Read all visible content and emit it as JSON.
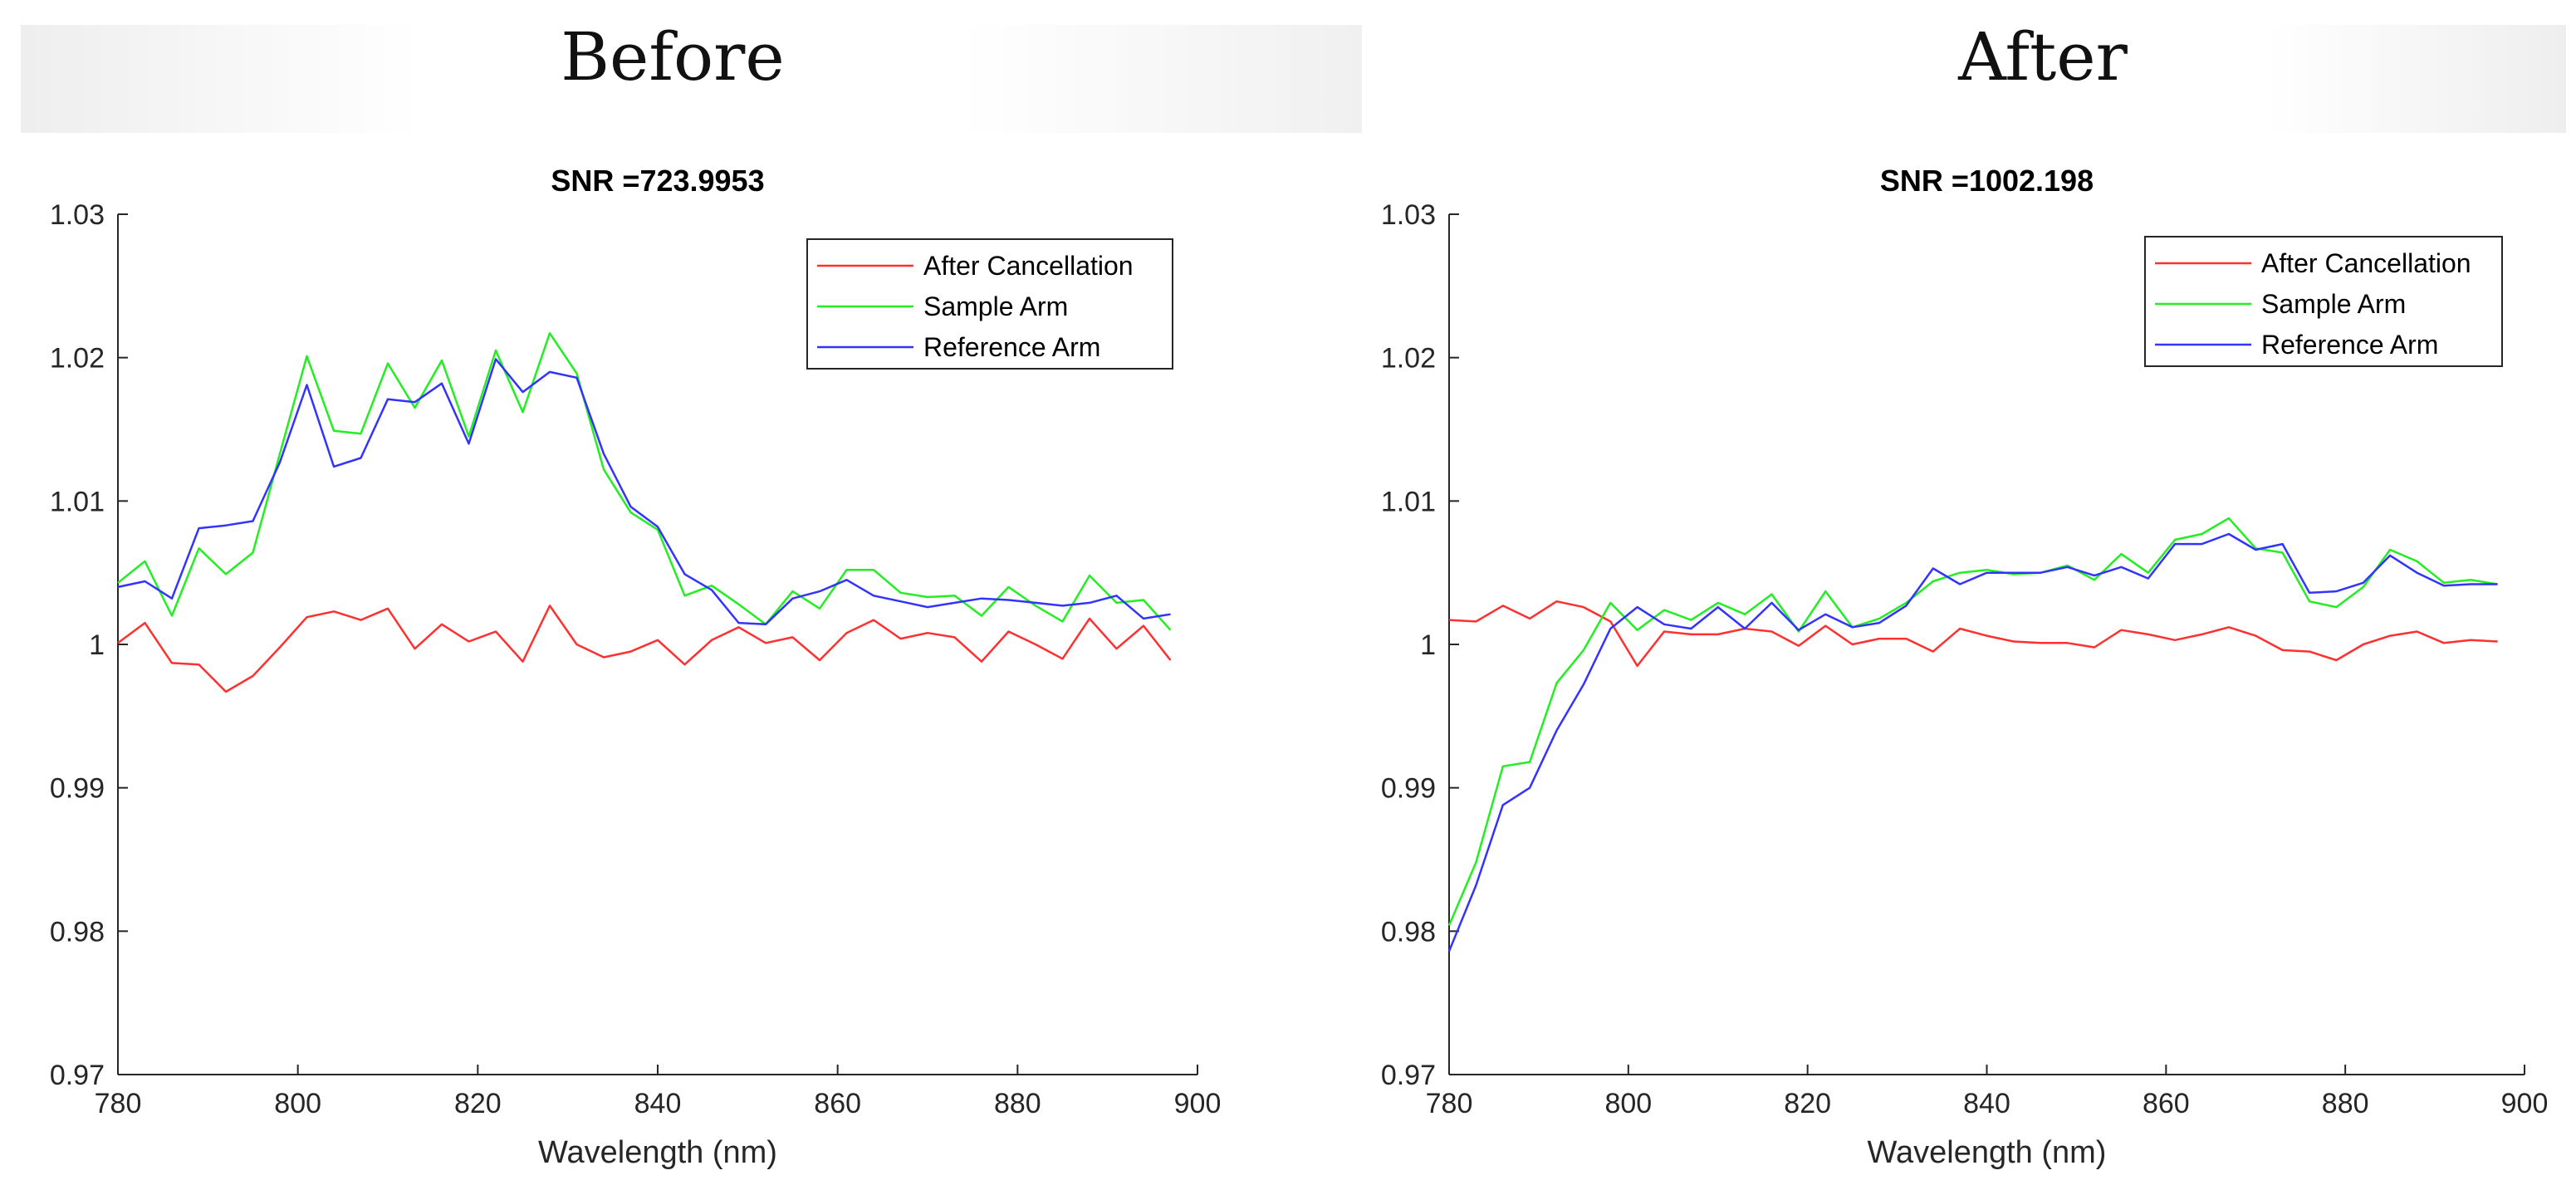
{
  "panels": {
    "before": "Before",
    "after": "After"
  },
  "colors": {
    "after_cancellation": "#ff3030",
    "sample_arm": "#22ee22",
    "reference_arm": "#3333ff"
  },
  "chart_data": [
    {
      "type": "line",
      "title": "SNR =723.9953",
      "xlabel": "Wavelength (nm)",
      "ylabel": "",
      "xlim": [
        780,
        900
      ],
      "ylim": [
        0.97,
        1.03
      ],
      "xticks": [
        780,
        800,
        820,
        840,
        860,
        880,
        900
      ],
      "yticks": [
        0.97,
        0.98,
        0.99,
        1,
        1.01,
        1.02,
        1.03
      ],
      "ytick_labels": [
        "0.97",
        "0.98",
        "0.99",
        "1",
        "1.01",
        "1.02",
        "1.03"
      ],
      "legend_position": "top-right",
      "x": [
        780,
        783,
        786,
        789,
        792,
        795,
        798,
        801,
        804,
        807,
        810,
        813,
        816,
        819,
        822,
        825,
        828,
        831,
        834,
        837,
        840,
        843,
        846,
        849,
        852,
        855,
        858,
        861,
        864,
        867,
        870,
        873,
        876,
        879,
        882,
        885,
        888,
        891,
        894,
        897
      ],
      "series": [
        {
          "name": "After Cancellation",
          "color_key": "after_cancellation",
          "values": [
            1.0001,
            1.0015,
            0.9987,
            0.9986,
            0.9967,
            0.9978,
            0.9998,
            1.0019,
            1.0023,
            1.0017,
            1.0025,
            0.9997,
            1.0014,
            1.0002,
            1.0009,
            0.9988,
            1.0027,
            1.0,
            0.9991,
            0.9995,
            1.0003,
            0.9986,
            1.0003,
            1.0012,
            1.0001,
            1.0005,
            0.9989,
            1.0008,
            1.0017,
            1.0004,
            1.0008,
            1.0005,
            0.9988,
            1.0009,
            1.0,
            0.999,
            1.0018,
            0.9997,
            1.0013,
            0.9989
          ]
        },
        {
          "name": "Sample Arm",
          "color_key": "sample_arm",
          "values": [
            1.0043,
            1.0058,
            1.002,
            1.0067,
            1.0049,
            1.0064,
            1.0133,
            1.0201,
            1.0149,
            1.0147,
            1.0196,
            1.0165,
            1.0198,
            1.0145,
            1.0205,
            1.0162,
            1.0217,
            1.0189,
            1.0122,
            1.0092,
            1.008,
            1.0034,
            1.0041,
            1.0028,
            1.0014,
            1.0037,
            1.0025,
            1.0052,
            1.0052,
            1.0036,
            1.0033,
            1.0034,
            1.002,
            1.004,
            1.0027,
            1.0016,
            1.0048,
            1.0029,
            1.0031,
            1.001
          ]
        },
        {
          "name": "Reference Arm",
          "color_key": "reference_arm",
          "values": [
            1.004,
            1.0044,
            1.0032,
            1.0081,
            1.0083,
            1.0086,
            1.0127,
            1.0181,
            1.0124,
            1.013,
            1.0171,
            1.0169,
            1.0182,
            1.014,
            1.0199,
            1.0176,
            1.019,
            1.0186,
            1.0133,
            1.0096,
            1.0082,
            1.0049,
            1.0038,
            1.0015,
            1.0014,
            1.0032,
            1.0037,
            1.0045,
            1.0034,
            1.003,
            1.0026,
            1.0029,
            1.0032,
            1.0031,
            1.0029,
            1.0027,
            1.0029,
            1.0034,
            1.0018,
            1.0021
          ]
        }
      ]
    },
    {
      "type": "line",
      "title": "SNR =1002.198",
      "xlabel": "Wavelength (nm)",
      "ylabel": "",
      "xlim": [
        780,
        900
      ],
      "ylim": [
        0.97,
        1.03
      ],
      "xticks": [
        780,
        800,
        820,
        840,
        860,
        880,
        900
      ],
      "yticks": [
        0.97,
        0.98,
        0.99,
        1,
        1.01,
        1.02,
        1.03
      ],
      "ytick_labels": [
        "0.97",
        "0.98",
        "0.99",
        "1",
        "1.01",
        "1.02",
        "1.03"
      ],
      "legend_position": "top-right",
      "x": [
        780,
        783,
        786,
        789,
        792,
        795,
        798,
        801,
        804,
        807,
        810,
        813,
        816,
        819,
        822,
        825,
        828,
        831,
        834,
        837,
        840,
        843,
        846,
        849,
        852,
        855,
        858,
        861,
        864,
        867,
        870,
        873,
        876,
        879,
        882,
        885,
        888,
        891,
        894,
        897
      ],
      "series": [
        {
          "name": "After Cancellation",
          "color_key": "after_cancellation",
          "values": [
            1.0017,
            1.0016,
            1.0027,
            1.0018,
            1.003,
            1.0026,
            1.0016,
            0.9985,
            1.0009,
            1.0007,
            1.0007,
            1.0011,
            1.0009,
            0.9999,
            1.0013,
            1.0,
            1.0004,
            1.0004,
            0.9995,
            1.0011,
            1.0006,
            1.0002,
            1.0001,
            1.0001,
            0.9998,
            1.001,
            1.0007,
            1.0003,
            1.0007,
            1.0012,
            1.0006,
            0.9996,
            0.9995,
            0.9989,
            1.0,
            1.0006,
            1.0009,
            1.0001,
            1.0003,
            1.0002
          ]
        },
        {
          "name": "Sample Arm",
          "color_key": "sample_arm",
          "values": [
            0.9804,
            0.9848,
            0.9915,
            0.9918,
            0.9973,
            0.9996,
            1.0029,
            1.001,
            1.0024,
            1.0017,
            1.0029,
            1.0021,
            1.0035,
            1.0009,
            1.0037,
            1.0012,
            1.0018,
            1.0029,
            1.0044,
            1.005,
            1.0052,
            1.0049,
            1.005,
            1.0055,
            1.0045,
            1.0063,
            1.005,
            1.0073,
            1.0077,
            1.0088,
            1.0067,
            1.0064,
            1.003,
            1.0026,
            1.004,
            1.0066,
            1.0058,
            1.0043,
            1.0045,
            1.0042
          ]
        },
        {
          "name": "Reference Arm",
          "color_key": "reference_arm",
          "values": [
            0.9786,
            0.9832,
            0.9888,
            0.99,
            0.994,
            0.9972,
            1.0011,
            1.0026,
            1.0014,
            1.0011,
            1.0026,
            1.0011,
            1.0029,
            1.001,
            1.0021,
            1.0012,
            1.0015,
            1.0027,
            1.0053,
            1.0042,
            1.005,
            1.005,
            1.005,
            1.0054,
            1.0048,
            1.0054,
            1.0046,
            1.007,
            1.007,
            1.0077,
            1.0066,
            1.007,
            1.0036,
            1.0037,
            1.0043,
            1.0062,
            1.005,
            1.0041,
            1.0042,
            1.0042
          ]
        }
      ]
    }
  ]
}
